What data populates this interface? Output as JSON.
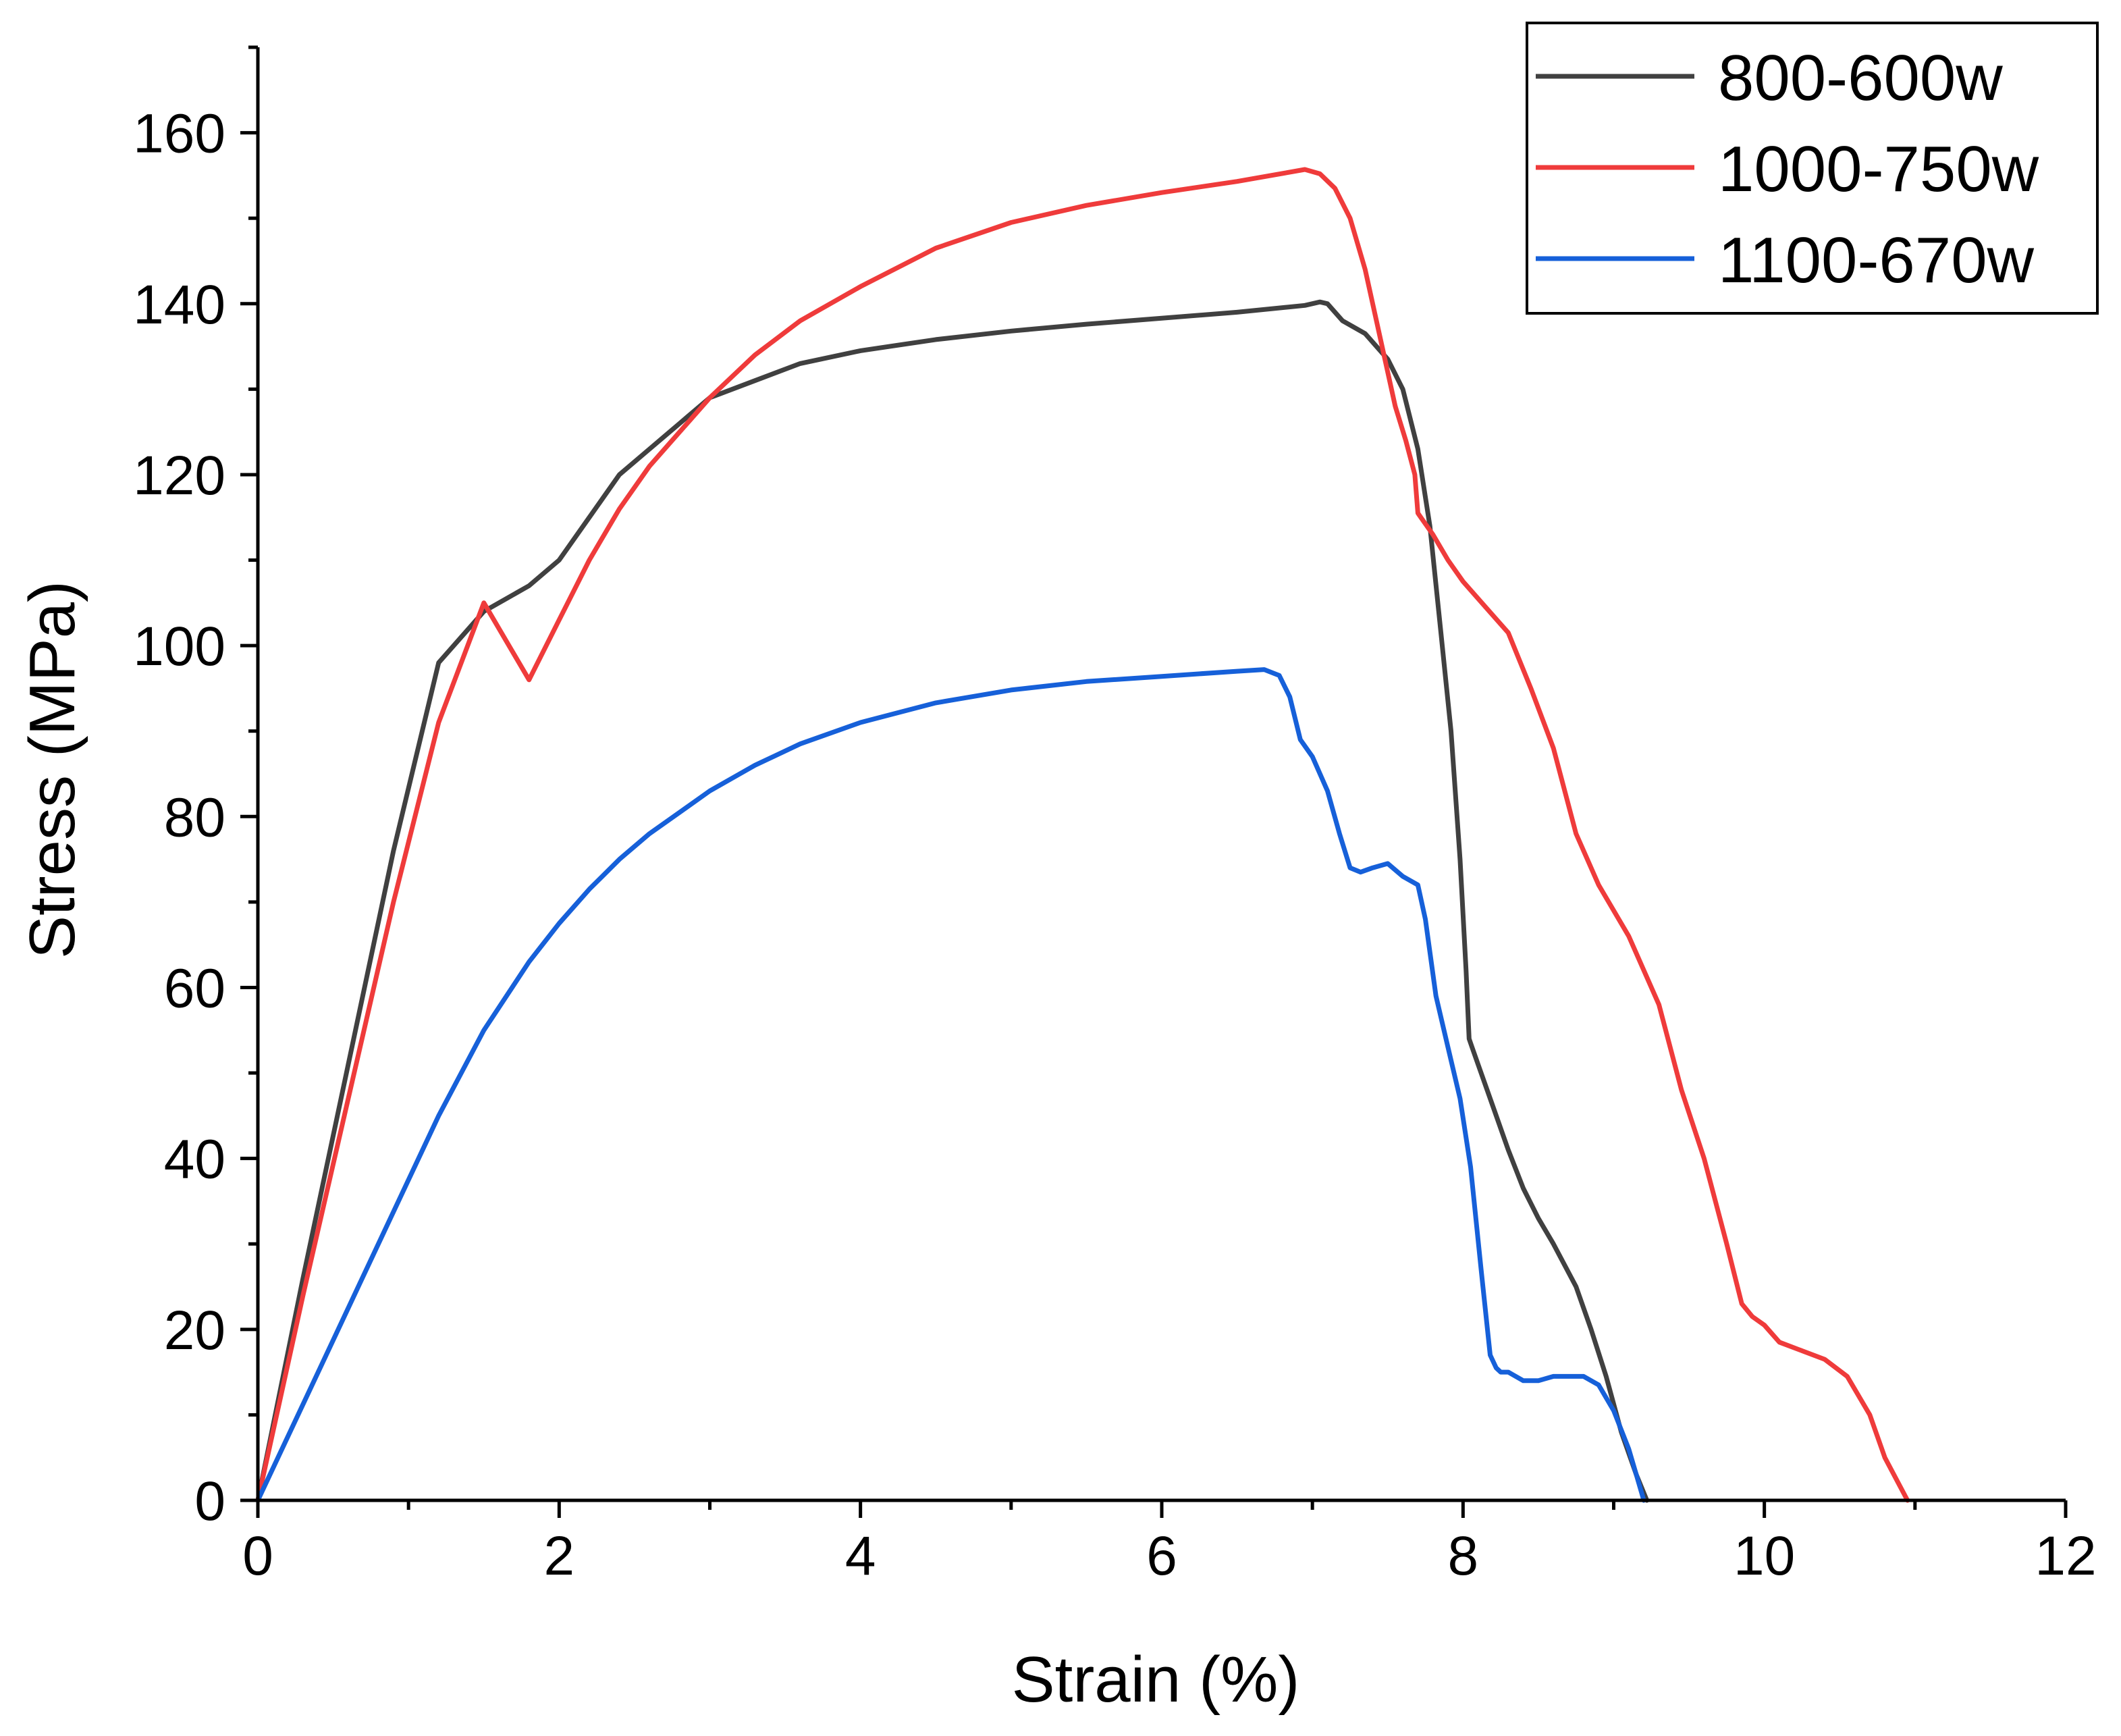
{
  "chart_data": {
    "type": "line",
    "title": "",
    "xlabel": "Strain (%)",
    "ylabel": "Stress (MPa)",
    "xlim": [
      0,
      12
    ],
    "ylim": [
      0,
      170
    ],
    "xticks": [
      0,
      2,
      4,
      6,
      8,
      10,
      12
    ],
    "yticks": [
      0,
      20,
      40,
      60,
      80,
      100,
      120,
      140,
      160
    ],
    "grid": false,
    "legend_position": "top-right",
    "series": [
      {
        "name": "800-600w",
        "color": "#404040",
        "x": [
          0,
          0.3,
          0.6,
          0.9,
          1.2,
          1.5,
          1.8,
          2.0,
          2.2,
          2.4,
          2.6,
          2.8,
          3.0,
          3.3,
          3.6,
          4.0,
          4.5,
          5.0,
          5.5,
          6.0,
          6.5,
          6.95,
          7.05,
          7.1,
          7.2,
          7.35,
          7.5,
          7.6,
          7.7,
          7.78,
          7.85,
          7.92,
          7.98,
          8.02,
          8.04,
          8.06,
          8.1,
          8.2,
          8.3,
          8.4,
          8.5,
          8.6,
          8.75,
          8.85,
          8.95,
          9.05,
          9.15,
          9.22
        ],
        "y": [
          0,
          26,
          51,
          76,
          98,
          104,
          107,
          110,
          115,
          120,
          123,
          126,
          129,
          131,
          133,
          134.5,
          135.8,
          136.8,
          137.6,
          138.3,
          139.0,
          139.8,
          140.2,
          140.0,
          138.0,
          136.5,
          133.5,
          130.0,
          123.0,
          114.0,
          102.0,
          90.0,
          75.0,
          62.0,
          54.0,
          53.0,
          51.0,
          46.0,
          41.0,
          36.5,
          33.0,
          30.0,
          25.0,
          20.0,
          14.5,
          8.0,
          3.0,
          0
        ]
      },
      {
        "name": "1000-750w",
        "color": "#ef3b3b",
        "x": [
          0,
          0.3,
          0.6,
          0.9,
          1.2,
          1.5,
          1.8,
          2.0,
          2.2,
          2.4,
          2.6,
          2.8,
          3.0,
          3.3,
          3.6,
          4.0,
          4.5,
          5.0,
          5.5,
          6.0,
          6.5,
          6.95,
          7.05,
          7.15,
          7.25,
          7.35,
          7.45,
          7.55,
          7.62,
          7.68,
          7.7,
          7.72,
          7.8,
          7.9,
          8.0,
          8.15,
          8.3,
          8.45,
          8.6,
          8.75,
          8.9,
          9.1,
          9.3,
          9.45,
          9.6,
          9.75,
          9.85,
          9.92,
          10.0,
          10.1,
          10.25,
          10.4,
          10.55,
          10.7,
          10.8,
          10.95
        ],
        "y": [
          0,
          24,
          47,
          70,
          91,
          105,
          96,
          103,
          110,
          116,
          121,
          125,
          129,
          134,
          138,
          142,
          146.5,
          149.5,
          151.5,
          153,
          154.3,
          155.7,
          155.2,
          153.5,
          150.0,
          144.0,
          136.0,
          128.0,
          124.0,
          120.0,
          115.5,
          115.0,
          113.0,
          110.0,
          107.5,
          104.5,
          101.5,
          95.0,
          88.0,
          78.0,
          72.0,
          66.0,
          58.0,
          48.0,
          40.0,
          30.0,
          23.0,
          21.5,
          20.5,
          18.5,
          17.5,
          16.5,
          14.5,
          10.0,
          5.0,
          0
        ]
      },
      {
        "name": "1100-670w",
        "color": "#1660d9",
        "x": [
          0,
          0.4,
          0.8,
          1.2,
          1.5,
          1.8,
          2.0,
          2.2,
          2.4,
          2.6,
          2.8,
          3.0,
          3.3,
          3.6,
          4.0,
          4.5,
          5.0,
          5.5,
          6.0,
          6.5,
          6.68,
          6.78,
          6.85,
          6.92,
          7.0,
          7.1,
          7.18,
          7.25,
          7.32,
          7.4,
          7.5,
          7.6,
          7.7,
          7.75,
          7.82,
          7.9,
          7.98,
          8.05,
          8.12,
          8.18,
          8.22,
          8.25,
          8.3,
          8.4,
          8.5,
          8.6,
          8.7,
          8.8,
          8.9,
          9.0,
          9.1,
          9.15,
          9.2
        ],
        "y": [
          0,
          15,
          30,
          45,
          55,
          63,
          67.5,
          71.5,
          75,
          78,
          80.5,
          83,
          86,
          88.5,
          91,
          93.3,
          94.8,
          95.8,
          96.4,
          97.0,
          97.2,
          96.5,
          94.0,
          89.0,
          87.0,
          83.0,
          78.0,
          74.0,
          73.5,
          74.0,
          74.5,
          73.0,
          72.0,
          68.0,
          59.0,
          53.0,
          47.0,
          39.0,
          27.0,
          17.0,
          15.5,
          15.0,
          15.0,
          14.0,
          14.0,
          14.5,
          14.5,
          14.5,
          13.5,
          10.5,
          6.0,
          3.0,
          0
        ]
      }
    ]
  }
}
